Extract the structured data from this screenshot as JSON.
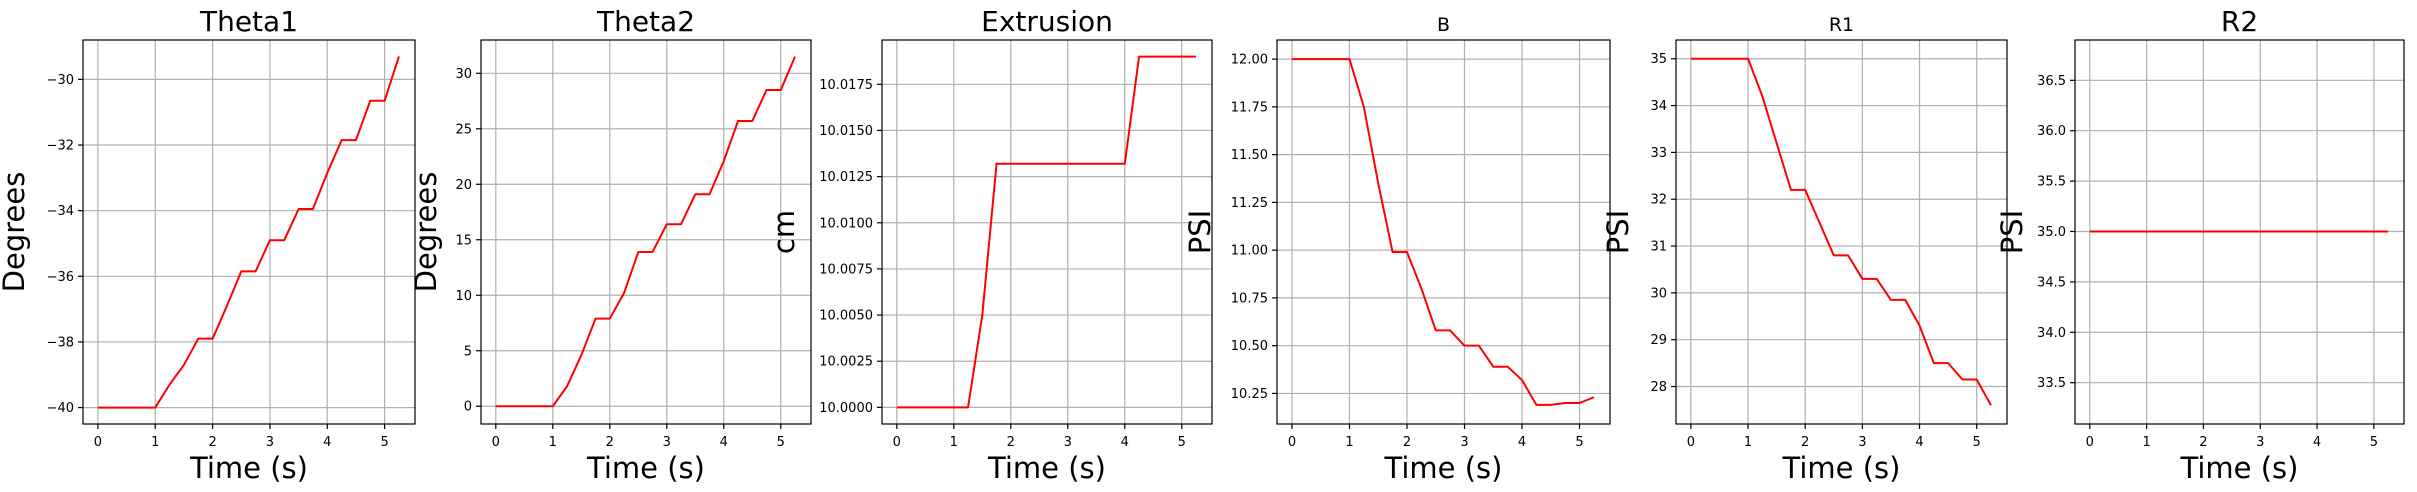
{
  "chart_data": [
    {
      "type": "line",
      "title": "Theta1",
      "xlabel": "Time (s)",
      "ylabel": "Degrees",
      "xlim": [
        -0.26,
        5.53
      ],
      "ylim": [
        -40.5,
        -28.8
      ],
      "xticks": [
        0,
        1,
        2,
        3,
        4,
        5
      ],
      "yticks": [
        -40,
        -38,
        -36,
        -34,
        -32,
        -30
      ],
      "ytick_labels": [
        "−40",
        "−38",
        "−36",
        "−34",
        "−32",
        "−30"
      ],
      "grid": true,
      "series": [
        {
          "color": "#ff0000",
          "x": [
            0,
            1.0,
            1.25,
            1.5,
            1.75,
            2.0,
            2.25,
            2.5,
            2.75,
            3.0,
            3.25,
            3.5,
            3.75,
            4.0,
            4.25,
            4.5,
            4.75,
            5.0,
            5.25
          ],
          "y": [
            -40.0,
            -40.0,
            -39.3,
            -38.7,
            -37.9,
            -37.9,
            -36.9,
            -35.85,
            -35.85,
            -34.9,
            -34.9,
            -33.95,
            -33.95,
            -32.85,
            -31.85,
            -31.85,
            -30.65,
            -30.65,
            -29.3
          ]
        }
      ]
    },
    {
      "type": "line",
      "title": "Theta2",
      "xlabel": "Time (s)",
      "ylabel": "Degrees",
      "xlim": [
        -0.26,
        5.53
      ],
      "ylim": [
        -1.6,
        33.0
      ],
      "xticks": [
        0,
        1,
        2,
        3,
        4,
        5
      ],
      "yticks": [
        0,
        5,
        10,
        15,
        20,
        25,
        30
      ],
      "ytick_labels": [
        "0",
        "5",
        "10",
        "15",
        "20",
        "25",
        "30"
      ],
      "grid": true,
      "series": [
        {
          "color": "#ff0000",
          "x": [
            0,
            1.0,
            1.25,
            1.5,
            1.75,
            2.0,
            2.25,
            2.5,
            2.75,
            3.0,
            3.25,
            3.5,
            3.75,
            4.0,
            4.25,
            4.5,
            4.75,
            5.0,
            5.25
          ],
          "y": [
            0,
            0,
            1.8,
            4.6,
            7.9,
            7.9,
            10.2,
            13.9,
            13.9,
            16.4,
            16.4,
            19.1,
            19.1,
            22.1,
            25.7,
            25.7,
            28.5,
            28.5,
            31.5
          ]
        }
      ]
    },
    {
      "type": "line",
      "title": "Extrusion",
      "xlabel": "Time (s)",
      "ylabel": "cm",
      "xlim": [
        -0.26,
        5.53
      ],
      "ylim": [
        9.9991,
        10.0199
      ],
      "xticks": [
        0,
        1,
        2,
        3,
        4,
        5
      ],
      "yticks": [
        10.0,
        10.0025,
        10.005,
        10.0075,
        10.01,
        10.0125,
        10.015,
        10.0175
      ],
      "ytick_labels": [
        "10.0000",
        "10.0025",
        "10.0050",
        "10.0075",
        "10.0100",
        "10.0125",
        "10.0150",
        "10.0175"
      ],
      "grid": true,
      "series": [
        {
          "color": "#ff0000",
          "x": [
            0,
            1.25,
            1.5,
            1.75,
            4.0,
            4.25,
            5.25
          ],
          "y": [
            10.0,
            10.0,
            10.005,
            10.0132,
            10.0132,
            10.019,
            10.019
          ]
        }
      ]
    },
    {
      "type": "line",
      "title": "B",
      "xlabel": "Time (s)",
      "ylabel": "PSI",
      "xlim": [
        -0.26,
        5.53
      ],
      "ylim": [
        10.09,
        12.1
      ],
      "xticks": [
        0,
        1,
        2,
        3,
        4,
        5
      ],
      "yticks": [
        10.25,
        10.5,
        10.75,
        11.0,
        11.25,
        11.5,
        11.75,
        12.0
      ],
      "ytick_labels": [
        "10.25",
        "10.50",
        "10.75",
        "11.00",
        "11.25",
        "11.50",
        "11.75",
        "12.00"
      ],
      "grid": true,
      "series": [
        {
          "color": "#ff0000",
          "x": [
            0,
            1.0,
            1.25,
            1.5,
            1.75,
            2.0,
            2.25,
            2.5,
            2.75,
            3.0,
            3.25,
            3.5,
            3.75,
            4.0,
            4.25,
            4.5,
            4.75,
            5.0,
            5.25
          ],
          "y": [
            12.0,
            12.0,
            11.75,
            11.35,
            10.99,
            10.99,
            10.8,
            10.58,
            10.58,
            10.5,
            10.5,
            10.39,
            10.39,
            10.32,
            10.19,
            10.19,
            10.2,
            10.2,
            10.23
          ]
        }
      ]
    },
    {
      "type": "line",
      "title": "R1",
      "xlabel": "Time (s)",
      "ylabel": "PSI",
      "xlim": [
        -0.26,
        5.53
      ],
      "ylim": [
        27.2,
        35.4
      ],
      "xticks": [
        0,
        1,
        2,
        3,
        4,
        5
      ],
      "yticks": [
        28,
        29,
        30,
        31,
        32,
        33,
        34,
        35
      ],
      "ytick_labels": [
        "28",
        "29",
        "30",
        "31",
        "32",
        "33",
        "34",
        "35"
      ],
      "grid": true,
      "series": [
        {
          "color": "#ff0000",
          "x": [
            0,
            1.0,
            1.25,
            1.5,
            1.75,
            2.0,
            2.25,
            2.5,
            2.75,
            3.0,
            3.25,
            3.5,
            3.75,
            4.0,
            4.25,
            4.5,
            4.75,
            5.0,
            5.25
          ],
          "y": [
            35.0,
            35.0,
            34.2,
            33.2,
            32.2,
            32.2,
            31.5,
            30.8,
            30.8,
            30.3,
            30.3,
            29.85,
            29.85,
            29.3,
            28.5,
            28.5,
            28.15,
            28.15,
            27.6
          ]
        }
      ]
    },
    {
      "type": "line",
      "title": "R2",
      "xlabel": "Time (s)",
      "ylabel": "PSI",
      "xlim": [
        -0.26,
        5.53
      ],
      "ylim": [
        33.09,
        36.9
      ],
      "xticks": [
        0,
        1,
        2,
        3,
        4,
        5
      ],
      "yticks": [
        33.5,
        34.0,
        34.5,
        35.0,
        35.5,
        36.0,
        36.5
      ],
      "ytick_labels": [
        "33.5",
        "34.0",
        "34.5",
        "35.0",
        "35.5",
        "36.0",
        "36.5"
      ],
      "grid": true,
      "series": [
        {
          "color": "#ff0000",
          "x": [
            0,
            5.25
          ],
          "y": [
            35.0,
            35.0
          ]
        }
      ]
    }
  ]
}
